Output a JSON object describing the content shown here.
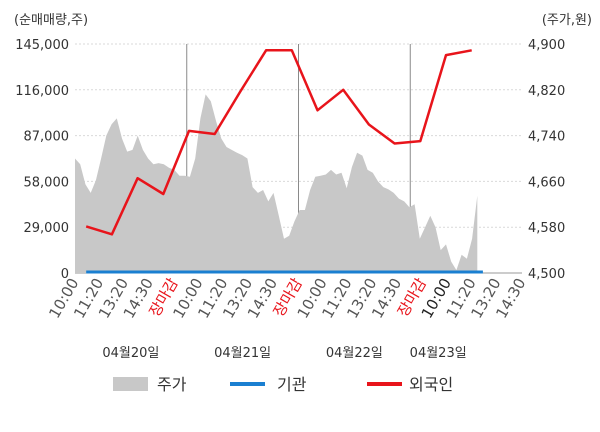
{
  "chart_data": {
    "type": "line",
    "left_axis": {
      "label": "(순매매량,주)",
      "ylim": [
        0,
        145000
      ],
      "ticks": [
        "0",
        "29,000",
        "58,000",
        "87,000",
        "116,000",
        "145,000"
      ]
    },
    "right_axis": {
      "label": "(주가,원)",
      "ylim": [
        4500,
        4900
      ],
      "ticks": [
        "4,500",
        "4,580",
        "4,660",
        "4,740",
        "4,820",
        "4,900"
      ]
    },
    "x_tick_labels": [
      {
        "text": "10:00",
        "style": "normal"
      },
      {
        "text": "11:20",
        "style": "normal"
      },
      {
        "text": "13:20",
        "style": "normal"
      },
      {
        "text": "14:30",
        "style": "normal"
      },
      {
        "text": "장마감",
        "style": "red"
      },
      {
        "text": "10:00",
        "style": "normal"
      },
      {
        "text": "11:20",
        "style": "normal"
      },
      {
        "text": "13:20",
        "style": "normal"
      },
      {
        "text": "14:30",
        "style": "normal"
      },
      {
        "text": "장마감",
        "style": "red"
      },
      {
        "text": "10:00",
        "style": "normal"
      },
      {
        "text": "11:20",
        "style": "normal"
      },
      {
        "text": "13:20",
        "style": "normal"
      },
      {
        "text": "14:30",
        "style": "normal"
      },
      {
        "text": "장마감",
        "style": "red"
      },
      {
        "text": "10:00",
        "style": "dark"
      },
      {
        "text": "11:20",
        "style": "normal"
      },
      {
        "text": "13:20",
        "style": "normal"
      },
      {
        "text": "14:30",
        "style": "normal"
      }
    ],
    "day_labels": [
      "04월20일",
      "04월21일",
      "04월22일",
      "04월23일"
    ],
    "series": [
      {
        "name": "주가",
        "type": "area",
        "axis": "right",
        "color": "#c8c8c8",
        "values": [
          4700,
          4690,
          4655,
          4640,
          4662,
          4700,
          4740,
          4760,
          4770,
          4735,
          4712,
          4715,
          4740,
          4715,
          4700,
          4690,
          4692,
          4690,
          4684,
          4680,
          4670,
          4670,
          4668,
          4700,
          4770,
          4812,
          4800,
          4765,
          4735,
          4720,
          4715,
          4710,
          4706,
          4700,
          4650,
          4640,
          4645,
          4625,
          4640,
          4600,
          4560,
          4565,
          4590,
          4610,
          4610,
          4645,
          4668,
          4670,
          4672,
          4680,
          4672,
          4675,
          4648,
          4685,
          4710,
          4705,
          4680,
          4675,
          4660,
          4650,
          4646,
          4640,
          4630,
          4625,
          4615,
          4620,
          4560,
          4580,
          4600,
          4580,
          4540,
          4550,
          4520,
          4505,
          4532,
          4525,
          4560,
          4635
        ]
      },
      {
        "name": "기관",
        "type": "line",
        "axis": "left",
        "color": "#1a7fd1",
        "values": [
          0,
          0,
          0,
          0,
          0,
          0,
          0,
          0,
          0,
          0,
          0,
          0,
          0,
          0,
          0,
          0,
          0,
          0,
          0,
          0,
          0,
          0,
          0,
          0,
          0,
          0,
          0,
          0
        ]
      },
      {
        "name": "외국인",
        "type": "line",
        "axis": "left",
        "color": "#e8141b",
        "values": [
          29500,
          24500,
          60000,
          50000,
          90000,
          88000,
          115000,
          141000,
          141000,
          103000,
          116000,
          94000,
          82000,
          83500,
          138000,
          141000
        ]
      }
    ],
    "grid": true,
    "legend_position": "bottom"
  }
}
